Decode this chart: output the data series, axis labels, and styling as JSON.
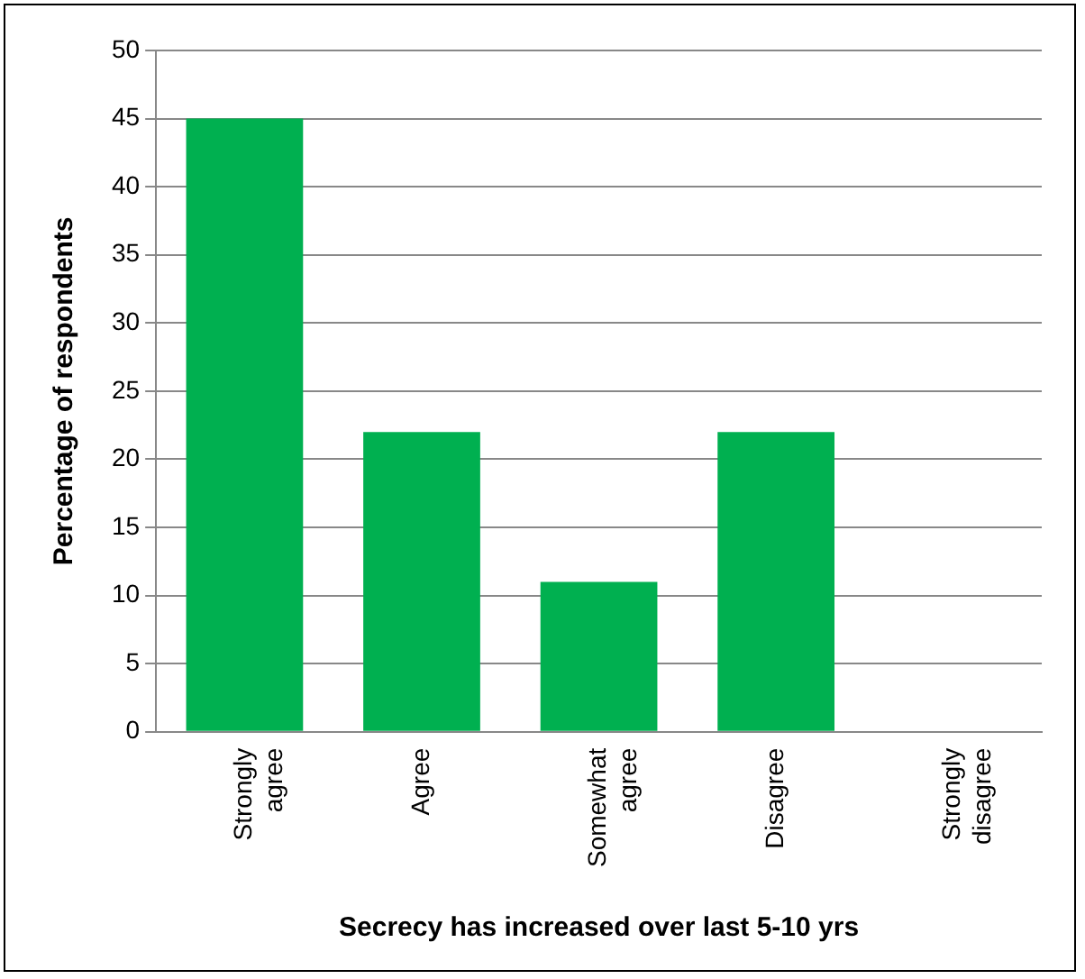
{
  "chart_data": {
    "type": "bar",
    "xlabel": "Secrecy has increased over last 5-10 yrs",
    "ylabel": "Percentage of respondents",
    "categories": [
      "Strongly agree",
      "Agree",
      "Somewhat agree",
      "Disagree",
      "Strongly disagree"
    ],
    "values": [
      45,
      22,
      11,
      22,
      0
    ],
    "color": "#00b050",
    "ylim": [
      0,
      50
    ],
    "yticks": [
      0,
      5,
      10,
      15,
      20,
      25,
      30,
      35,
      40,
      45,
      50
    ],
    "grid": "y",
    "legend": false
  }
}
